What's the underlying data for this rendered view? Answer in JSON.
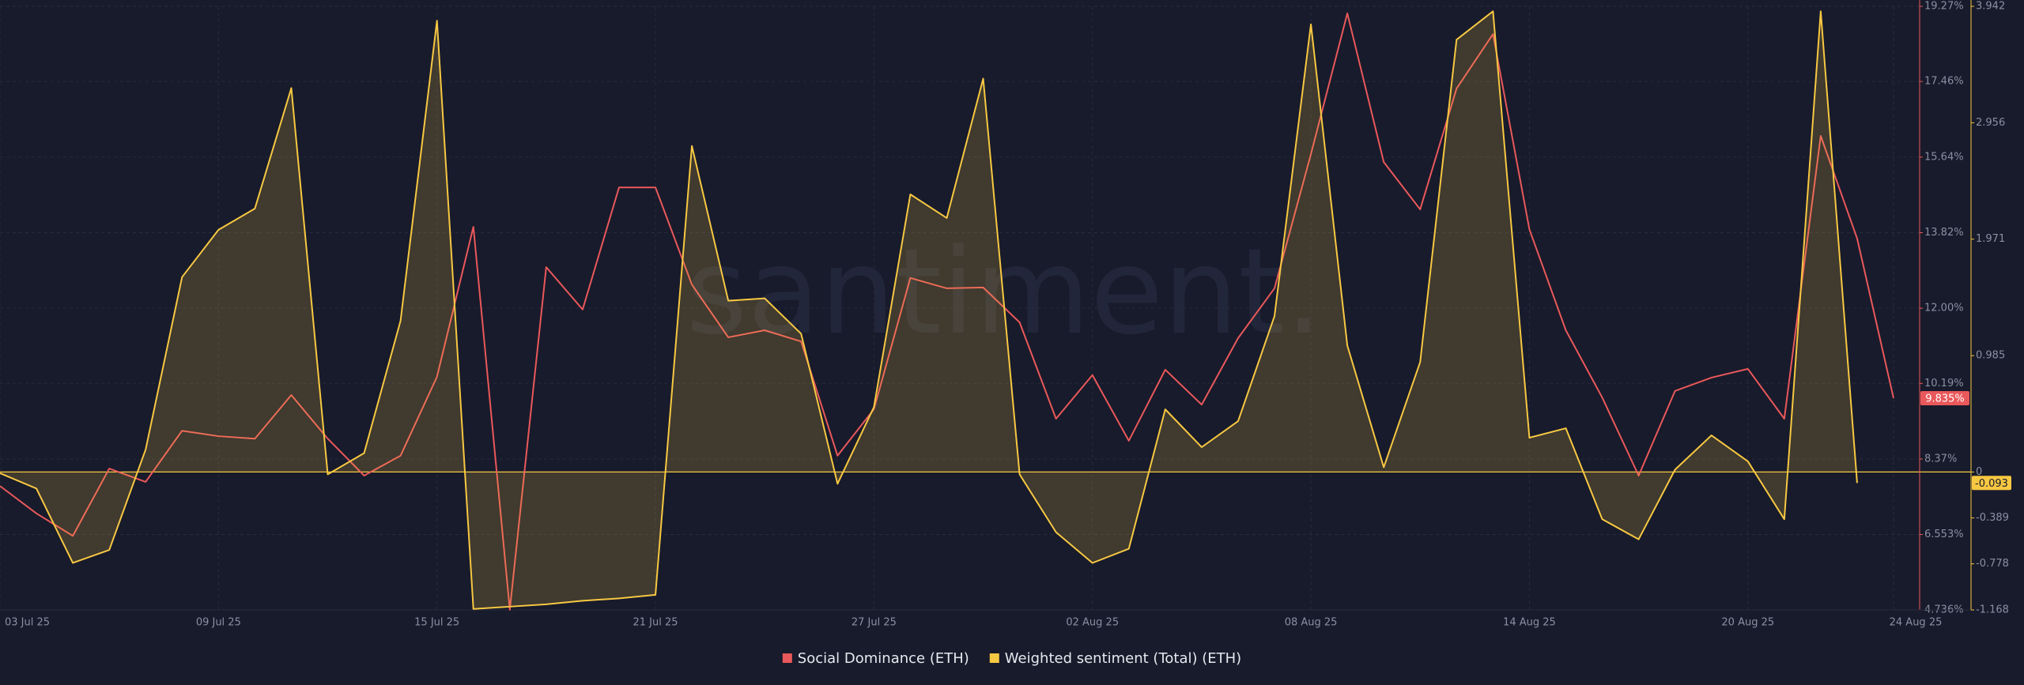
{
  "chart_data": {
    "type": "line",
    "watermark": "santiment.",
    "categories": [
      "03 Jul 25",
      null,
      null,
      null,
      null,
      null,
      "09 Jul 25",
      null,
      null,
      null,
      null,
      null,
      "15 Jul 25",
      null,
      null,
      null,
      null,
      null,
      "21 Jul 25",
      null,
      null,
      null,
      null,
      null,
      "27 Jul 25",
      null,
      null,
      null,
      null,
      null,
      "02 Aug 25",
      null,
      null,
      null,
      null,
      null,
      "08 Aug 25",
      null,
      null,
      null,
      null,
      null,
      "14 Aug 25",
      null,
      null,
      null,
      null,
      null,
      "20 Aug 25",
      null,
      null,
      null,
      "24 Aug 25"
    ],
    "series": [
      {
        "name": "Social Dominance (ETH)",
        "color": "#e9585b",
        "axis": "y",
        "current_label": "9.835%",
        "values": [
          7.72,
          7.06,
          6.52,
          8.14,
          7.82,
          9.05,
          8.92,
          8.86,
          9.91,
          8.86,
          7.97,
          8.45,
          10.35,
          13.96,
          4.74,
          12.99,
          11.97,
          14.91,
          14.91,
          12.57,
          11.3,
          11.47,
          11.2,
          8.45,
          9.57,
          12.73,
          12.48,
          12.5,
          11.66,
          9.34,
          10.39,
          8.81,
          10.52,
          9.68,
          11.28,
          12.48,
          15.71,
          19.1,
          15.52,
          14.38,
          17.29,
          18.6,
          13.9,
          11.47,
          9.85,
          7.97,
          10.01,
          10.33,
          10.54,
          9.34,
          16.15,
          13.68,
          9.835
        ]
      },
      {
        "name": "Weighted sentiment (Total) (ETH)",
        "color": "#f7c842",
        "axis": "y2",
        "area": true,
        "current_label": "-0.093",
        "values": [
          -0.01,
          -0.14,
          -0.77,
          -0.66,
          0.19,
          1.65,
          2.05,
          2.23,
          3.25,
          -0.02,
          0.16,
          1.28,
          3.82,
          -1.16,
          -1.14,
          -1.12,
          -1.09,
          -1.07,
          -1.04,
          2.76,
          1.45,
          1.47,
          1.17,
          -0.1,
          0.55,
          2.35,
          2.15,
          3.33,
          -0.02,
          -0.51,
          -0.77,
          -0.65,
          0.53,
          0.21,
          0.43,
          1.32,
          3.79,
          1.07,
          0.04,
          0.93,
          3.66,
          3.9,
          0.29,
          0.37,
          -0.4,
          -0.57,
          0.02,
          0.31,
          0.09,
          -0.4,
          3.9,
          -0.093,
          null
        ]
      }
    ],
    "ylim": [
      4.736,
      19.27
    ],
    "yticks": [
      {
        "value": 19.27,
        "label": "19.27%"
      },
      {
        "value": 17.46,
        "label": "17.46%"
      },
      {
        "value": 15.64,
        "label": "15.64%"
      },
      {
        "value": 13.82,
        "label": "13.82%"
      },
      {
        "value": 12.0,
        "label": "12.00%"
      },
      {
        "value": 10.19,
        "label": "10.19%"
      },
      {
        "value": 8.37,
        "label": "8.37%"
      },
      {
        "value": 6.553,
        "label": "6.553%"
      },
      {
        "value": 4.736,
        "label": "4.736%"
      }
    ],
    "y2lim": [
      -1.168,
      3.942
    ],
    "y2ticks": [
      3.942,
      2.956,
      1.971,
      0.985,
      0,
      -0.389,
      -0.778,
      -1.168
    ],
    "grid": true,
    "legend": "bottom"
  }
}
